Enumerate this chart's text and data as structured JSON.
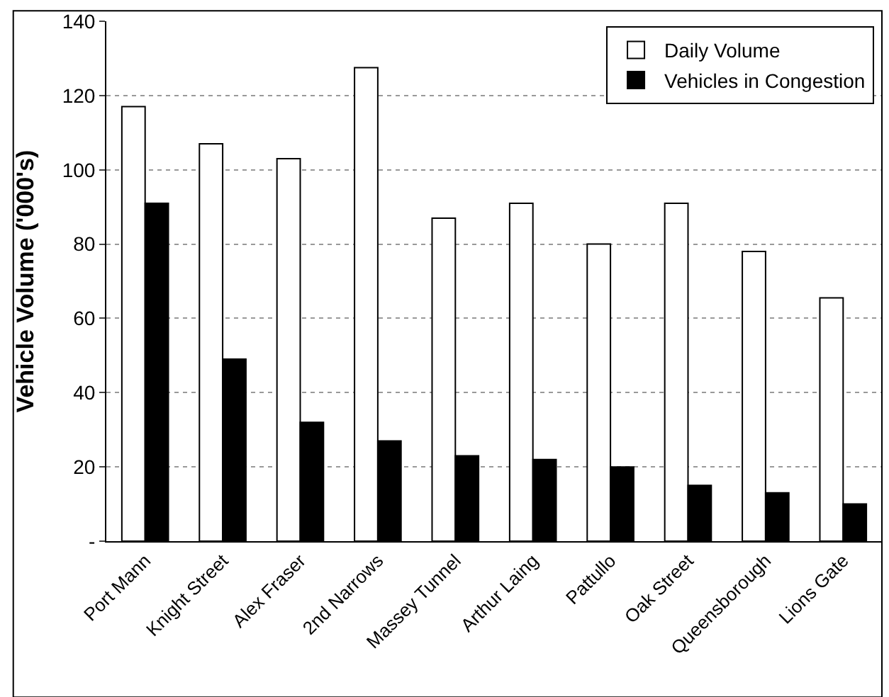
{
  "chart_data": {
    "type": "bar",
    "ylabel": "Vehicle Volume ('000's)",
    "categories": [
      "Port Mann",
      "Knight Street",
      "Alex Fraser",
      "2nd Narrows",
      "Massey Tunnel",
      "Arthur Laing",
      "Pattullo",
      "Oak Street",
      "Queensborough",
      "Lions Gate"
    ],
    "series": [
      {
        "name": "Daily Volume",
        "color": "#ffffff",
        "values": [
          117,
          107,
          103,
          127.5,
          87,
          91,
          80,
          91,
          78,
          65.5
        ]
      },
      {
        "name": "Vehicles in Congestion",
        "color": "#000000",
        "values": [
          91,
          49,
          32,
          27,
          23,
          22,
          20,
          15,
          13,
          10
        ]
      }
    ],
    "ylim": [
      0,
      140
    ],
    "yticks": [
      {
        "value": 0,
        "label": "-"
      },
      20,
      40,
      60,
      80,
      100,
      120,
      140
    ],
    "grid": "y",
    "legend": "top right"
  }
}
